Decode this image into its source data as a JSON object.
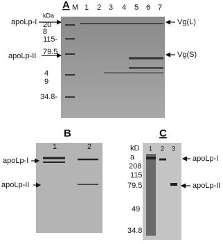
{
  "panel_a": {
    "label": "A",
    "marker_lane": "M",
    "lanes": [
      "1",
      "2",
      "3",
      "4",
      "5",
      "6",
      "7"
    ],
    "unit": "kDa",
    "markers": [
      "20",
      "8",
      "115-",
      "79.5",
      "4",
      "9",
      "34.8-"
    ],
    "left_labels": [
      "apoLp-I",
      "apoLp-II"
    ],
    "right_labels": [
      "Vg(L)",
      "Vg(S)"
    ]
  },
  "panel_b": {
    "label": "B",
    "lanes": [
      "1",
      "2"
    ],
    "left_labels": [
      "apoLp-I",
      "apoLp-II"
    ]
  },
  "panel_c": {
    "label": "C",
    "unit": [
      "kD",
      "a"
    ],
    "markers": [
      "208",
      "115",
      "79.5",
      "49",
      "34.8"
    ],
    "lanes": [
      "1",
      "2",
      "3"
    ],
    "right_labels": [
      "apoLp-I",
      "apoLp-II"
    ]
  }
}
